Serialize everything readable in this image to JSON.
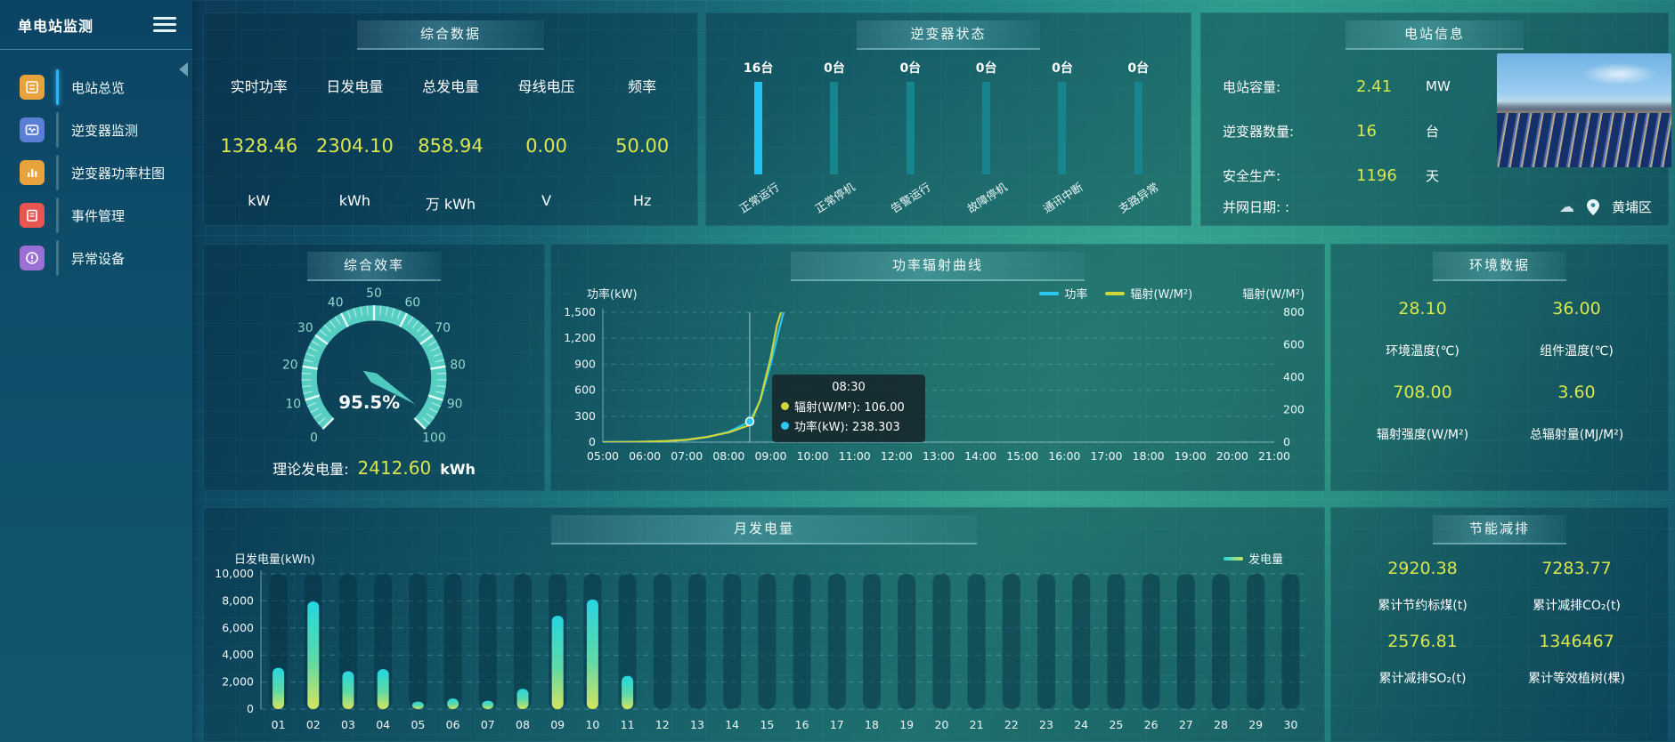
{
  "sidebar": {
    "title": "单电站监测",
    "items": [
      {
        "label": "电站总览",
        "active": true,
        "color": "#e8a33d"
      },
      {
        "label": "逆变器监测",
        "active": false,
        "color": "#5b7fd4"
      },
      {
        "label": "逆变器功率柱图",
        "active": false,
        "color": "#e8a33d"
      },
      {
        "label": "事件管理",
        "active": false,
        "color": "#e85450"
      },
      {
        "label": "异常设备",
        "active": false,
        "color": "#9b6fd4"
      }
    ]
  },
  "panels": {
    "summary": {
      "title": "综合数据",
      "metrics": [
        {
          "label": "实时功率",
          "value": "1328.46",
          "unit": "kW"
        },
        {
          "label": "日发电量",
          "value": "2304.10",
          "unit": "kWh"
        },
        {
          "label": "总发电量",
          "value": "858.94",
          "unit": "万  kWh"
        },
        {
          "label": "母线电压",
          "value": "0.00",
          "unit": "V"
        },
        {
          "label": "频率",
          "value": "50.00",
          "unit": "Hz"
        }
      ]
    },
    "inverter_status": {
      "title": "逆变器状态",
      "bars": [
        {
          "count": "16台",
          "label": "正常运行",
          "highlight": true
        },
        {
          "count": "0台",
          "label": "正常停机",
          "highlight": false
        },
        {
          "count": "0台",
          "label": "告警运行",
          "highlight": false
        },
        {
          "count": "0台",
          "label": "故障停机",
          "highlight": false
        },
        {
          "count": "0台",
          "label": "通讯中断",
          "highlight": false
        },
        {
          "count": "0台",
          "label": "支路异常",
          "highlight": false
        }
      ]
    },
    "station_info": {
      "title": "电站信息",
      "rows": [
        {
          "label": "电站容量:",
          "value": "2.41",
          "unit": "MW"
        },
        {
          "label": "逆变器数量:",
          "value": "16",
          "unit": "台"
        },
        {
          "label": "安全生产:",
          "value": "1196",
          "unit": "天"
        }
      ],
      "grid_date_label": "并网日期:  :",
      "location": "黄埔区"
    },
    "efficiency": {
      "title": "综合效率",
      "theory_label": "理论发电量:",
      "theory_value": "2412.60",
      "theory_unit": "kWh"
    },
    "power_curve": {
      "title": "功率辐射曲线",
      "tooltip": {
        "time": "08:30",
        "lines": [
          {
            "text": "辐射(W/M²): 106.00",
            "color": "#cdd63a"
          },
          {
            "text": "功率(kW): 238.303",
            "color": "#29c8f0"
          }
        ]
      }
    },
    "environment": {
      "title": "环境数据",
      "cells": [
        {
          "value": "28.10",
          "label": "环境温度(℃)"
        },
        {
          "value": "36.00",
          "label": "组件温度(℃)"
        },
        {
          "value": "708.00",
          "label": "辐射强度(W/M²)"
        },
        {
          "value": "3.60",
          "label": "总辐射量(MJ/M²)"
        }
      ]
    },
    "monthly": {
      "title": "月发电量"
    },
    "saving": {
      "title": "节能减排",
      "cells": [
        {
          "value": "2920.38",
          "label": "累计节约标煤(t)"
        },
        {
          "value": "7283.77",
          "label": "累计减排CO₂(t)"
        },
        {
          "value": "2576.81",
          "label": "累计减排SO₂(t)"
        },
        {
          "value": "1346467",
          "label": "累计等效植树(棵)"
        }
      ]
    }
  },
  "chart_data": [
    {
      "type": "gauge",
      "title": "综合效率",
      "min": 0,
      "max": 100,
      "major_step": 10,
      "minor_step": 2,
      "value": 95.5,
      "value_label": "95.5%",
      "arc_color": "#56cfc2",
      "label_color": "#8fd8cd"
    },
    {
      "type": "line",
      "title": "功率辐射曲线",
      "ylabel_left": "功率(kW)",
      "ylabel_right": "辐射(W/M²)",
      "ylim_left": [
        0,
        1500
      ],
      "ylim_right": [
        0,
        800
      ],
      "left_ticks": [
        "1,500",
        "1,200",
        "900",
        "600",
        "300",
        "0"
      ],
      "right_ticks": [
        "800",
        "600",
        "400",
        "200",
        "0"
      ],
      "x_labels": [
        "05:00",
        "06:00",
        "07:00",
        "08:00",
        "09:00",
        "10:00",
        "11:00",
        "12:00",
        "13:00",
        "14:00",
        "15:00",
        "16:00",
        "17:00",
        "18:00",
        "19:00",
        "20:00",
        "21:00"
      ],
      "x_range": [
        5,
        21
      ],
      "legend_position": "top-right",
      "grid": true,
      "series": [
        {
          "name": "功率",
          "color": "#29c8f0",
          "axis": "left",
          "x": [
            5,
            5.5,
            6,
            6.5,
            7,
            7.5,
            8,
            8.5,
            8.75,
            9,
            9.2,
            9.33
          ],
          "values": [
            2,
            3,
            6,
            12,
            25,
            60,
            120,
            238.3,
            480,
            900,
            1300,
            1540
          ]
        },
        {
          "name": "辐射(W/M²)",
          "color": "#cdd63a",
          "axis": "right",
          "x": [
            5,
            5.5,
            6,
            6.5,
            7,
            7.5,
            8,
            8.5,
            8.75,
            9,
            9.15,
            9.28
          ],
          "values": [
            0,
            1,
            3,
            7,
            15,
            33,
            60,
            106,
            260,
            520,
            720,
            830
          ]
        }
      ],
      "crosshair_x": 8.5,
      "marker": {
        "x": 8.5,
        "value": 238.3,
        "axis": "left",
        "color": "#29c8f0"
      }
    },
    {
      "type": "bar",
      "title": "月发电量",
      "ylabel": "日发电量(kWh)",
      "ylim": [
        0,
        10000
      ],
      "y_ticks": [
        "10,000",
        "8,000",
        "6,000",
        "4,000",
        "2,000",
        "0"
      ],
      "legend": "发电量",
      "grid": true,
      "categories": [
        "01",
        "02",
        "03",
        "04",
        "05",
        "06",
        "07",
        "08",
        "09",
        "10",
        "11",
        "12",
        "13",
        "14",
        "15",
        "16",
        "17",
        "18",
        "19",
        "20",
        "21",
        "22",
        "23",
        "24",
        "25",
        "26",
        "27",
        "28",
        "29",
        "30"
      ],
      "values": [
        3050,
        7950,
        2800,
        2950,
        550,
        780,
        620,
        1500,
        6900,
        8100,
        2450,
        0,
        0,
        0,
        0,
        0,
        0,
        0,
        0,
        0,
        0,
        0,
        0,
        0,
        0,
        0,
        0,
        0,
        0,
        0
      ],
      "bar_gradient": [
        "#25d6e0",
        "#5fd9a7",
        "#d4e45f"
      ]
    },
    {
      "type": "bar",
      "title": "逆变器状态",
      "categories": [
        "正常运行",
        "正常停机",
        "告警运行",
        "故障停机",
        "通讯中断",
        "支路异常"
      ],
      "values": [
        16,
        0,
        0,
        0,
        0,
        0
      ],
      "unit": "台",
      "highlight_color": "#1fc3f3",
      "base_color": "#17858d"
    }
  ]
}
